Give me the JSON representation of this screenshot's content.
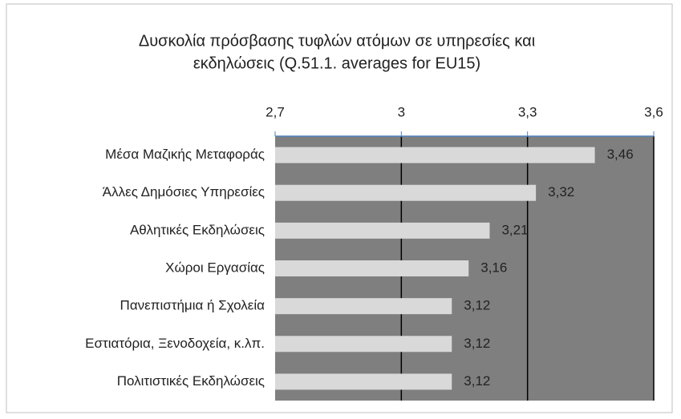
{
  "chart_data": {
    "type": "bar",
    "orientation": "horizontal",
    "title": [
      "Δυσκολία πρόσβασης τυφλών ατόμων σε υπηρεσίες και",
      "εκδηλώσεις (Q.51.1. averages for EU15)"
    ],
    "categories": [
      "Μέσα Μαζικής Μεταφοράς",
      "Άλλες Δημόσιες Υπηρεσίες",
      "Αθλητικές Εκδηλώσεις",
      "Χώροι Εργασίας",
      "Πανεπιστήμια ή Σχολεία",
      "Εστιατόρια, Ξενοδοχεία, κ.λπ.",
      "Πολιτιστικές Εκδηλώσεις"
    ],
    "values": [
      3.46,
      3.32,
      3.21,
      3.16,
      3.12,
      3.12,
      3.12
    ],
    "value_labels": [
      "3,46",
      "3,32",
      "3,21",
      "3,16",
      "3,12",
      "3,12",
      "3,12"
    ],
    "color": "#d9d9d9",
    "plot_background": "#7f7f7f",
    "xlim": [
      2.7,
      3.6
    ],
    "xticks": [
      {
        "value": 2.7,
        "label": "2,7"
      },
      3,
      {
        "value": 3.3,
        "label": "3,3"
      },
      {
        "value": 3.6,
        "label": "3,6"
      }
    ],
    "grid": true
  }
}
